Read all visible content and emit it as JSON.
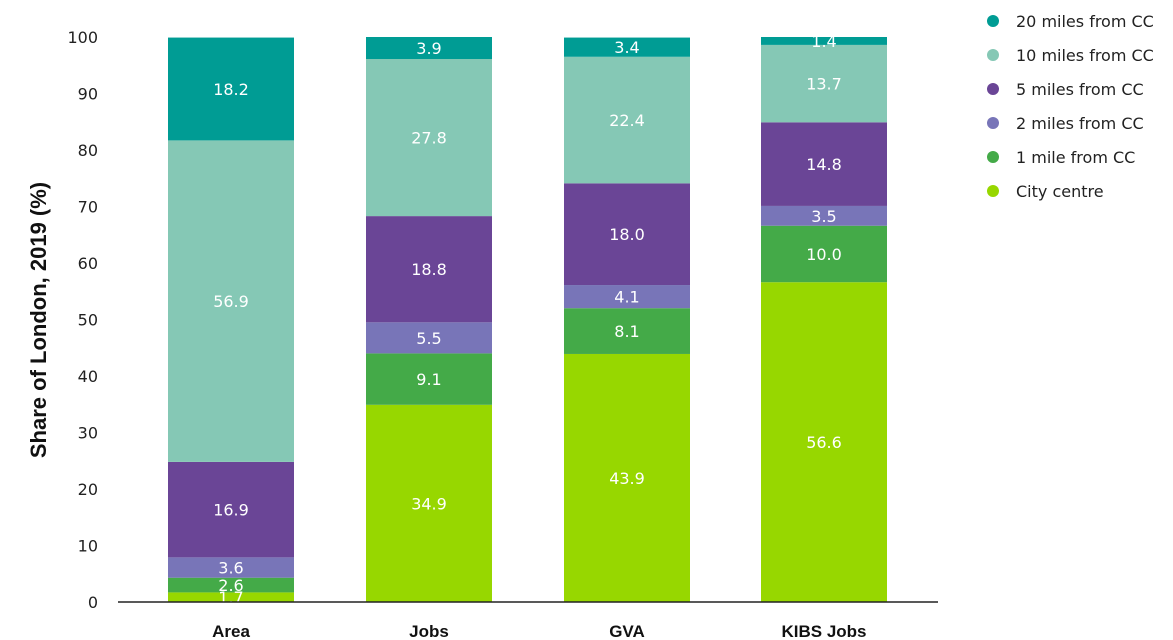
{
  "chart_data": {
    "type": "bar",
    "stacked": true,
    "title": "",
    "xlabel": "",
    "ylabel": "Share of London, 2019 (%)",
    "ylim": [
      0,
      100
    ],
    "yticks": [
      0,
      10,
      20,
      30,
      40,
      50,
      60,
      70,
      80,
      90,
      100
    ],
    "grid": false,
    "legend_position": "top-right",
    "categories": [
      "Area",
      "Jobs",
      "GVA",
      "KIBS Jobs"
    ],
    "series": [
      {
        "name": "City centre",
        "color": "#97d700",
        "values": [
          1.7,
          34.9,
          43.9,
          56.6
        ]
      },
      {
        "name": "1 mile from CC",
        "color": "#44aa48",
        "values": [
          2.6,
          9.1,
          8.1,
          10.0
        ]
      },
      {
        "name": "2 miles from CC",
        "color": "#7875b8",
        "values": [
          3.6,
          5.5,
          4.1,
          3.5
        ]
      },
      {
        "name": "5 miles from CC",
        "color": "#6a4596",
        "values": [
          16.9,
          18.8,
          18.0,
          14.8
        ]
      },
      {
        "name": "10 miles from CC",
        "color": "#85c8b5",
        "values": [
          56.9,
          27.8,
          22.4,
          13.7
        ]
      },
      {
        "name": "20 miles from CC",
        "color": "#009c94",
        "values": [
          18.2,
          3.9,
          3.4,
          1.4
        ]
      }
    ],
    "legend_order": [
      "20 miles from CC",
      "10 miles from CC",
      "5 miles from CC",
      "2 miles from CC",
      "1 mile from CC",
      "City centre"
    ]
  }
}
